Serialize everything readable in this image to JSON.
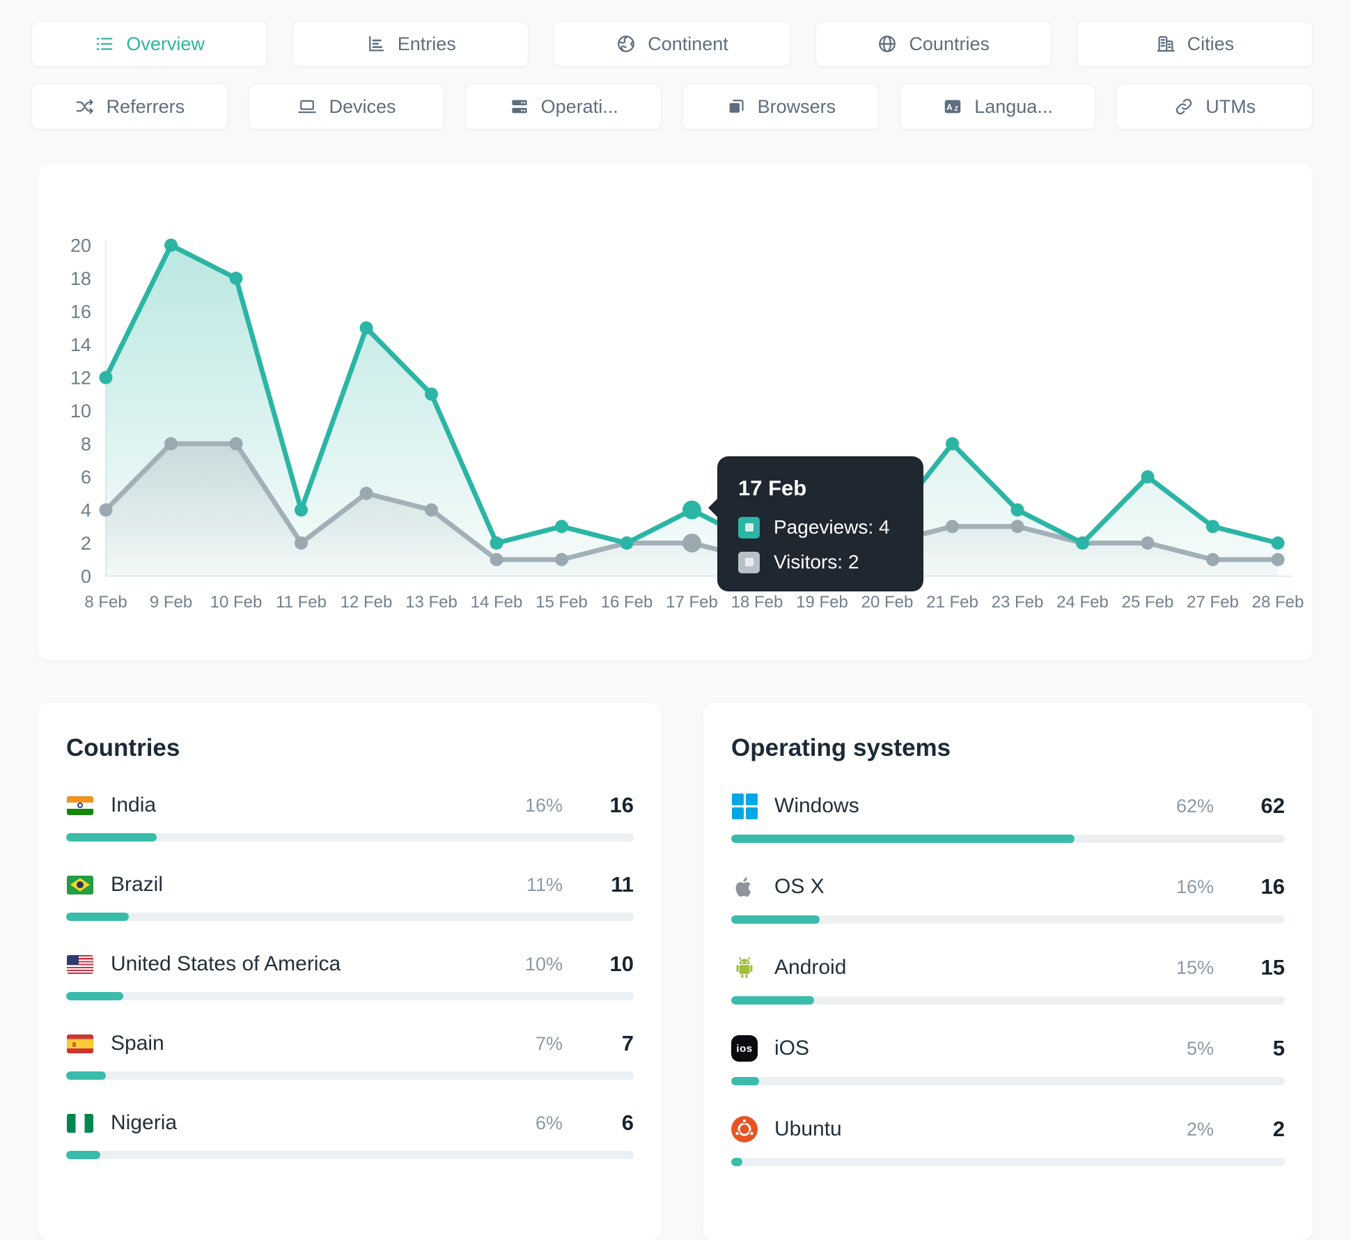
{
  "theme": {
    "accent": "#2bb5a4",
    "accent_fill": "rgba(43,181,164,0.32)",
    "secondary": "#a2b0b8",
    "secondary_point": "#9aa8b0",
    "secondary_fill": "rgba(152,167,175,0.32)",
    "tooltip_bg": "#1f2731",
    "bar_fill": "#3abcab",
    "bar_track": "#edf0f3",
    "windows_blue": "#00a7e6",
    "android_green": "#9fc037",
    "ubuntu_orange": "#e9531f",
    "apple_gray": "#8d959b"
  },
  "tabs": {
    "row1": [
      {
        "label": "Overview",
        "icon": "list",
        "active": true
      },
      {
        "label": "Entries",
        "icon": "bar-chart",
        "active": false
      },
      {
        "label": "Continent",
        "icon": "earth",
        "active": false
      },
      {
        "label": "Countries",
        "icon": "globe",
        "active": false
      },
      {
        "label": "Cities",
        "icon": "building",
        "active": false
      }
    ],
    "row2": [
      {
        "label": "Referrers",
        "icon": "shuffle",
        "active": false
      },
      {
        "label": "Devices",
        "icon": "laptop",
        "active": false
      },
      {
        "label": "Operati...",
        "icon": "server",
        "active": false
      },
      {
        "label": "Browsers",
        "icon": "browser",
        "active": false
      },
      {
        "label": "Langua...",
        "icon": "translate",
        "active": false
      },
      {
        "label": "UTMs",
        "icon": "link",
        "active": false
      }
    ]
  },
  "chart_data": {
    "type": "area",
    "x": [
      "8 Feb",
      "9 Feb",
      "10 Feb",
      "11 Feb",
      "12 Feb",
      "13 Feb",
      "14 Feb",
      "15 Feb",
      "16 Feb",
      "17 Feb",
      "18 Feb",
      "19 Feb",
      "20 Feb",
      "21 Feb",
      "23 Feb",
      "24 Feb",
      "25 Feb",
      "27 Feb",
      "28 Feb"
    ],
    "series": [
      {
        "name": "Pageviews",
        "color": "#2bb5a4",
        "values": [
          12,
          20,
          18,
          4,
          15,
          11,
          2,
          3,
          2,
          4,
          2,
          2,
          3,
          8,
          4,
          2,
          6,
          3,
          2
        ]
      },
      {
        "name": "Visitors",
        "color": "#a2b0b8",
        "values": [
          4,
          8,
          8,
          2,
          5,
          4,
          1,
          1,
          2,
          2,
          1,
          1,
          2,
          3,
          3,
          2,
          2,
          1,
          1
        ]
      }
    ],
    "ylim": [
      0,
      20
    ],
    "ytick_step": 2,
    "grid": false,
    "legend_position": "tooltip",
    "hover_index": 9
  },
  "tooltip": {
    "title": "17 Feb",
    "rows": [
      {
        "label": "Pageviews: 4",
        "swatch": "#2bb5a4",
        "swatch_inner": "#d6efe9"
      },
      {
        "label": "Visitors: 2",
        "swatch": "#b8c1c7",
        "swatch_inner": "#e9edef"
      }
    ]
  },
  "panels": {
    "countries": {
      "title": "Countries",
      "rows": [
        {
          "name": "India",
          "flag": "india",
          "pct": "16%",
          "pct_value": 16,
          "count": "16"
        },
        {
          "name": "Brazil",
          "flag": "brazil",
          "pct": "11%",
          "pct_value": 11,
          "count": "11"
        },
        {
          "name": "United States of America",
          "flag": "usa",
          "pct": "10%",
          "pct_value": 10,
          "count": "10"
        },
        {
          "name": "Spain",
          "flag": "spain",
          "pct": "7%",
          "pct_value": 7,
          "count": "7"
        },
        {
          "name": "Nigeria",
          "flag": "nigeria",
          "pct": "6%",
          "pct_value": 6,
          "count": "6"
        }
      ]
    },
    "operating_systems": {
      "title": "Operating systems",
      "rows": [
        {
          "name": "Windows",
          "icon": "windows",
          "pct": "62%",
          "pct_value": 62,
          "count": "62"
        },
        {
          "name": "OS X",
          "icon": "apple",
          "pct": "16%",
          "pct_value": 16,
          "count": "16"
        },
        {
          "name": "Android",
          "icon": "android",
          "pct": "15%",
          "pct_value": 15,
          "count": "15"
        },
        {
          "name": "iOS",
          "icon": "ios",
          "pct": "5%",
          "pct_value": 5,
          "count": "5"
        },
        {
          "name": "Ubuntu",
          "icon": "ubuntu",
          "pct": "2%",
          "pct_value": 2,
          "count": "2"
        }
      ]
    }
  }
}
